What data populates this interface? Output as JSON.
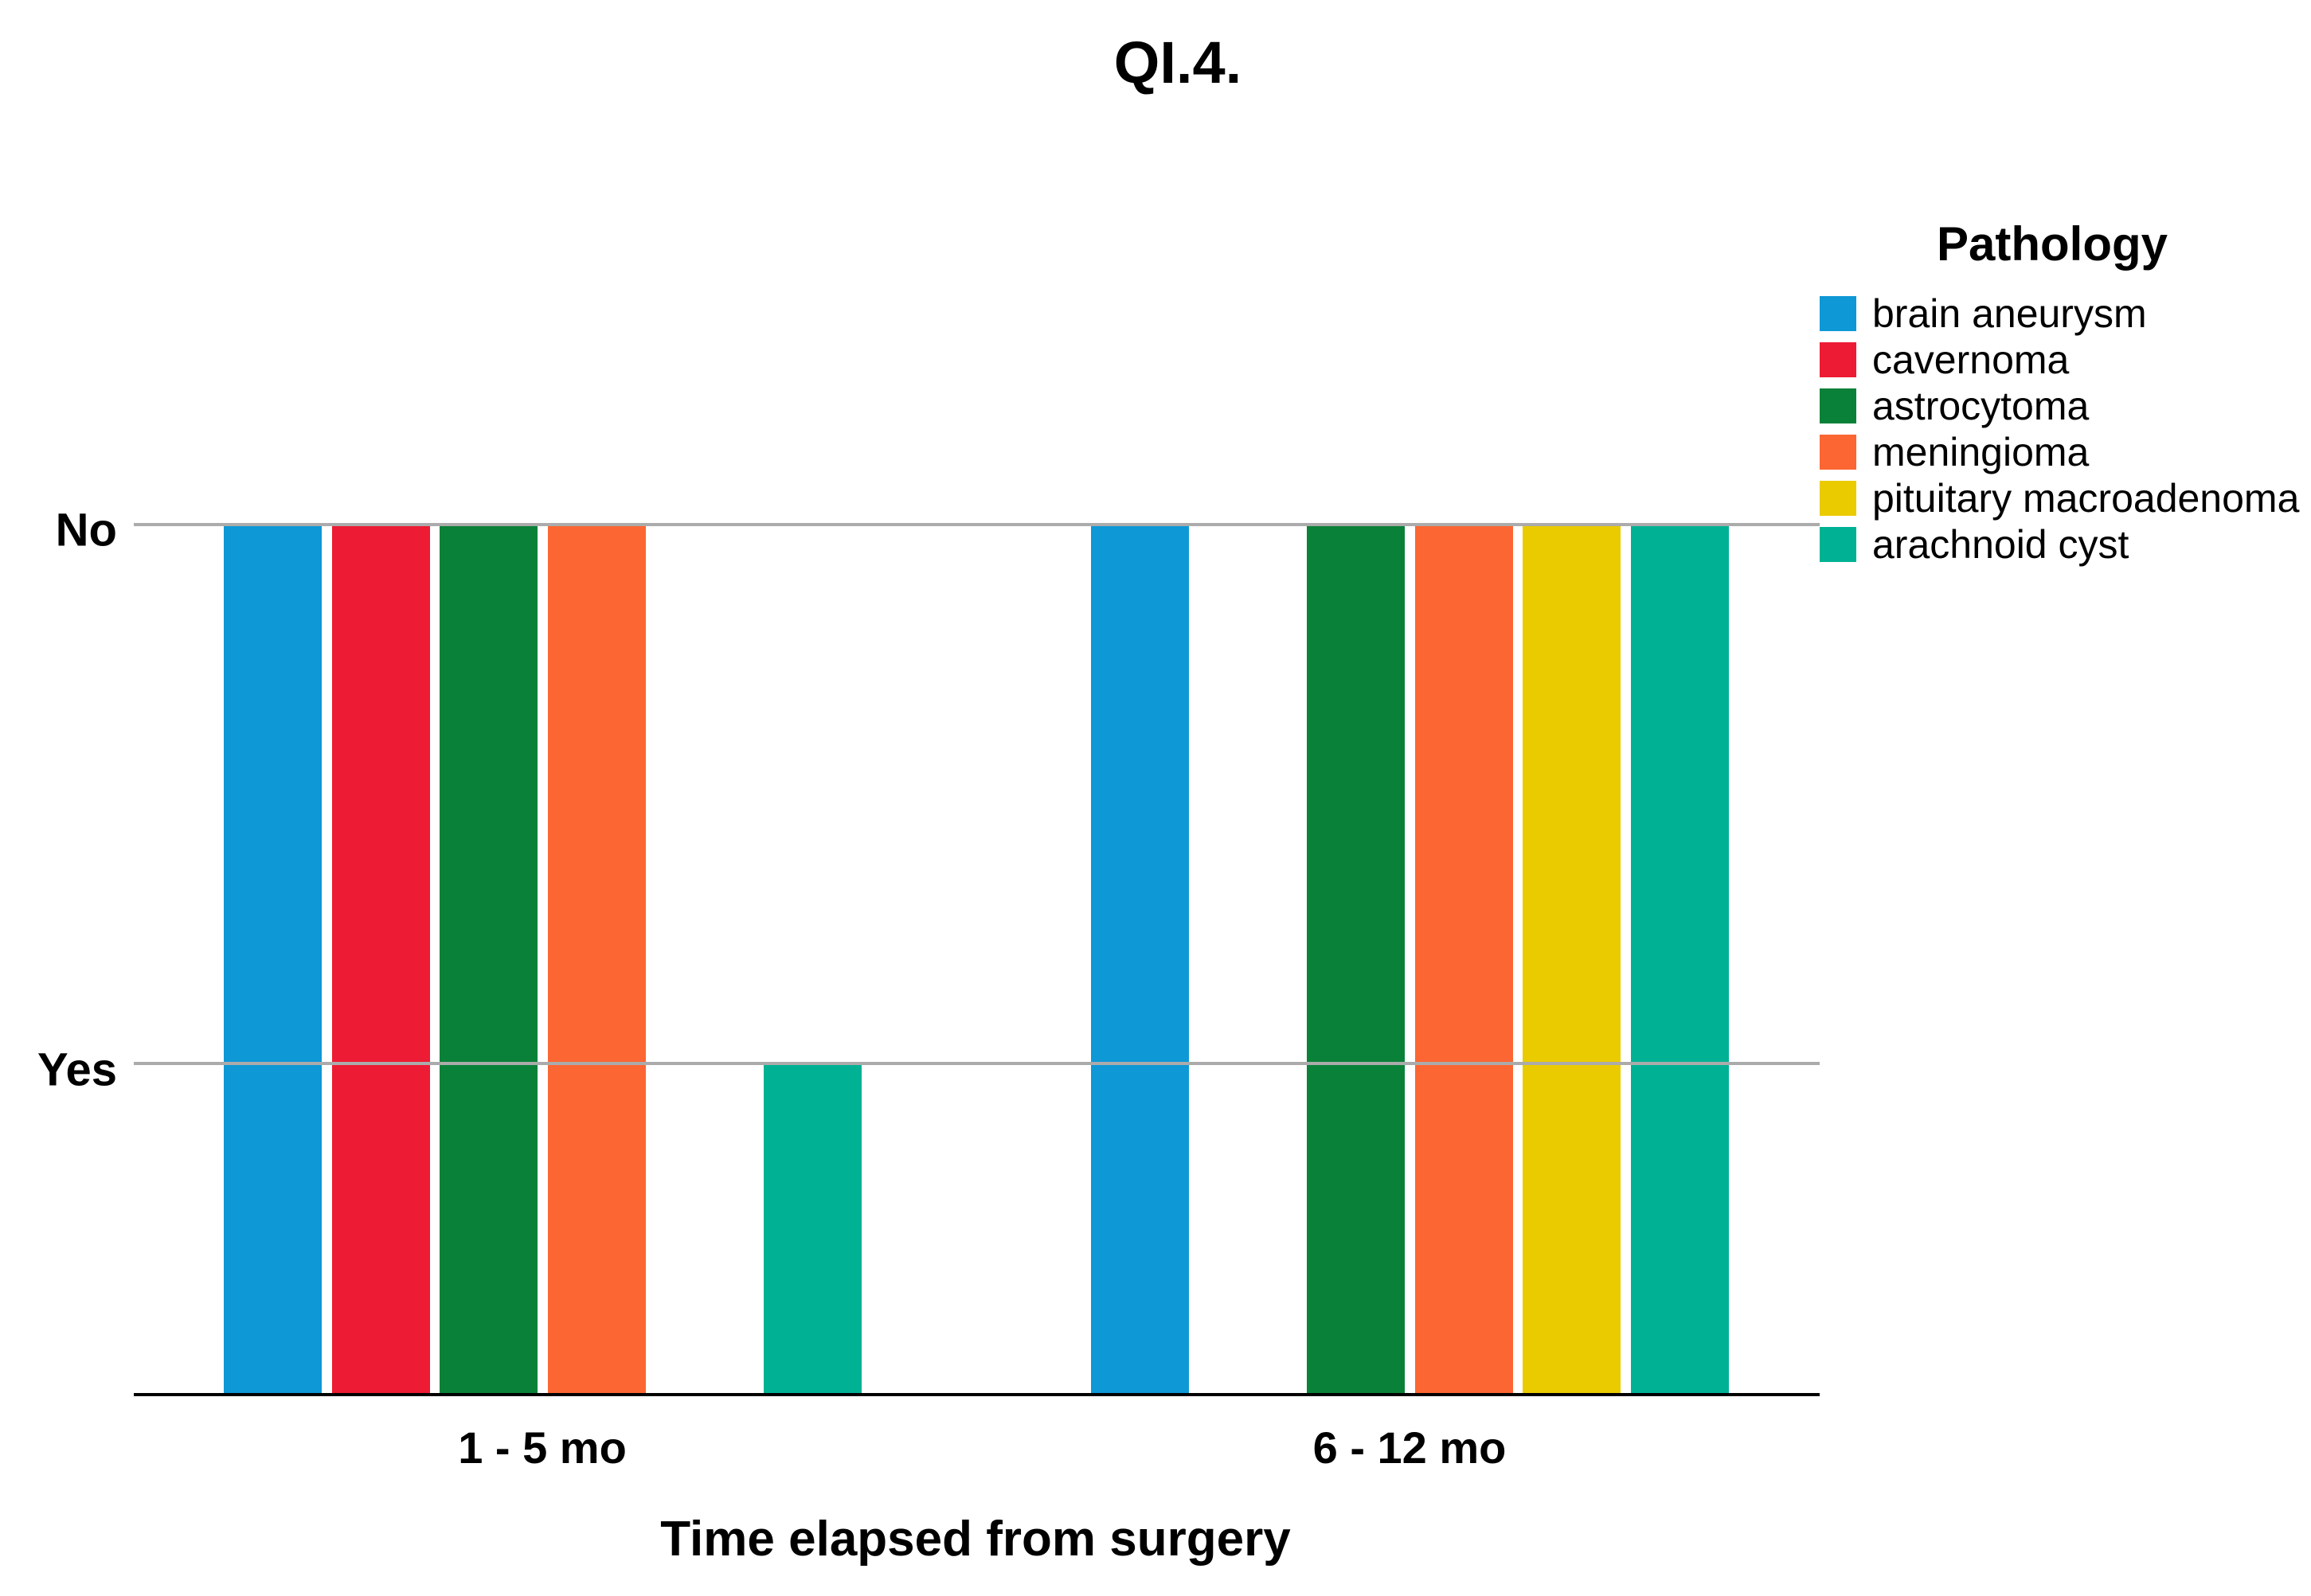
{
  "chart_data": {
    "type": "bar",
    "title": "QI.4.",
    "xlabel": "Time elapsed from surgery",
    "legend_title": "Pathology",
    "legend_position": "right",
    "grid": "horizontal-category-lines",
    "y_categories": [
      "No",
      "Yes"
    ],
    "categories": [
      "1 - 5 mo",
      "6 - 12 mo"
    ],
    "series": [
      {
        "name": "brain aneurysm",
        "color": "#0E98D5",
        "values": {
          "1 - 5 mo": "No",
          "6 - 12 mo": "No"
        }
      },
      {
        "name": "cavernoma",
        "color": "#ED1B33",
        "values": {
          "1 - 5 mo": "No",
          "6 - 12 mo": null
        }
      },
      {
        "name": "astrocytoma",
        "color": "#0A8138",
        "values": {
          "1 - 5 mo": "No",
          "6 - 12 mo": "No"
        }
      },
      {
        "name": "meningioma",
        "color": "#FB6633",
        "values": {
          "1 - 5 mo": "No",
          "6 - 12 mo": "No"
        }
      },
      {
        "name": "pituitary macroadenoma",
        "color": "#EACB00",
        "values": {
          "1 - 5 mo": null,
          "6 - 12 mo": "No"
        }
      },
      {
        "name": "arachnoid cyst",
        "color": "#00B194",
        "values": {
          "1 - 5 mo": "Yes",
          "6 - 12 mo": "No"
        }
      }
    ],
    "colors": {
      "gridline": "#ababab",
      "baseline": "#000000",
      "text": "#000000",
      "background": "#ffffff"
    }
  }
}
